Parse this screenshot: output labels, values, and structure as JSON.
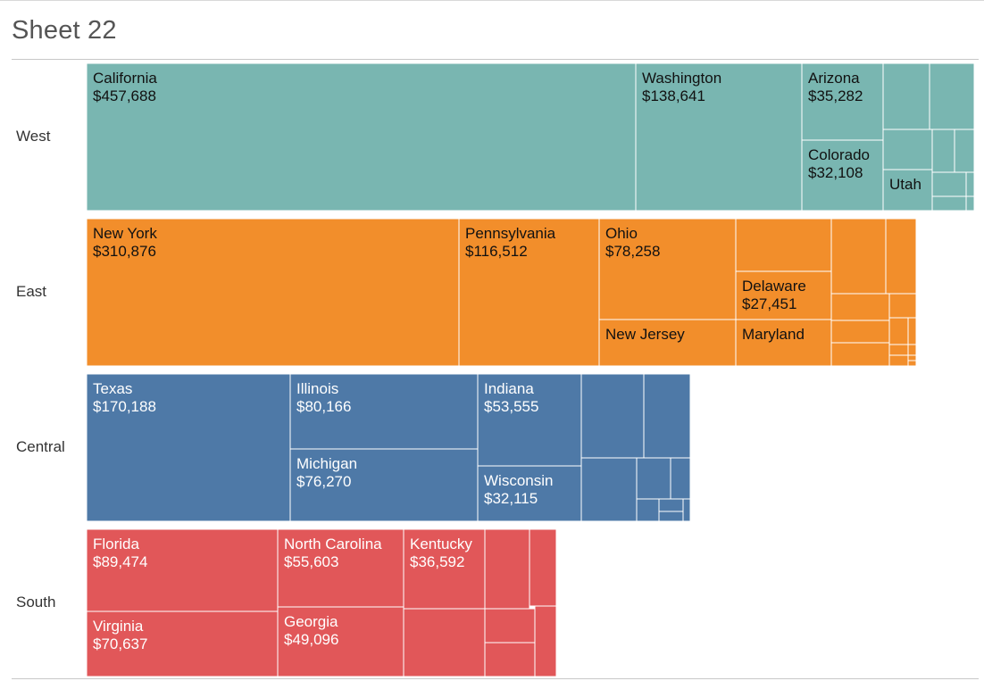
{
  "title": "Sheet 22",
  "colors": {
    "West": "#79b6b1",
    "East": "#f28e2b",
    "Central": "#4e79a7",
    "South": "#e15759",
    "border": "#ffffff"
  },
  "chart_data": {
    "type": "treemap",
    "title": "Sheet 22",
    "rows": [
      "West",
      "East",
      "Central",
      "South"
    ],
    "series": [
      {
        "name": "West",
        "states": [
          {
            "label": "California",
            "value": "$457,688"
          },
          {
            "label": "Washington",
            "value": "$138,641"
          },
          {
            "label": "Arizona",
            "value": "$35,282"
          },
          {
            "label": "Colorado",
            "value": "$32,108"
          },
          {
            "label": "Utah",
            "value": ""
          }
        ]
      },
      {
        "name": "East",
        "states": [
          {
            "label": "New York",
            "value": "$310,876"
          },
          {
            "label": "Pennsylvania",
            "value": "$116,512"
          },
          {
            "label": "Ohio",
            "value": "$78,258"
          },
          {
            "label": "Delaware",
            "value": "$27,451"
          },
          {
            "label": "New Jersey",
            "value": ""
          },
          {
            "label": "Maryland",
            "value": ""
          }
        ]
      },
      {
        "name": "Central",
        "states": [
          {
            "label": "Texas",
            "value": "$170,188"
          },
          {
            "label": "Illinois",
            "value": "$80,166"
          },
          {
            "label": "Michigan",
            "value": "$76,270"
          },
          {
            "label": "Indiana",
            "value": "$53,555"
          },
          {
            "label": "Wisconsin",
            "value": "$32,115"
          }
        ]
      },
      {
        "name": "South",
        "states": [
          {
            "label": "Florida",
            "value": "$89,474"
          },
          {
            "label": "Virginia",
            "value": "$70,637"
          },
          {
            "label": "North Carolina",
            "value": "$55,603"
          },
          {
            "label": "Georgia",
            "value": "$49,096"
          },
          {
            "label": "Kentucky",
            "value": "$36,592"
          }
        ]
      }
    ]
  }
}
